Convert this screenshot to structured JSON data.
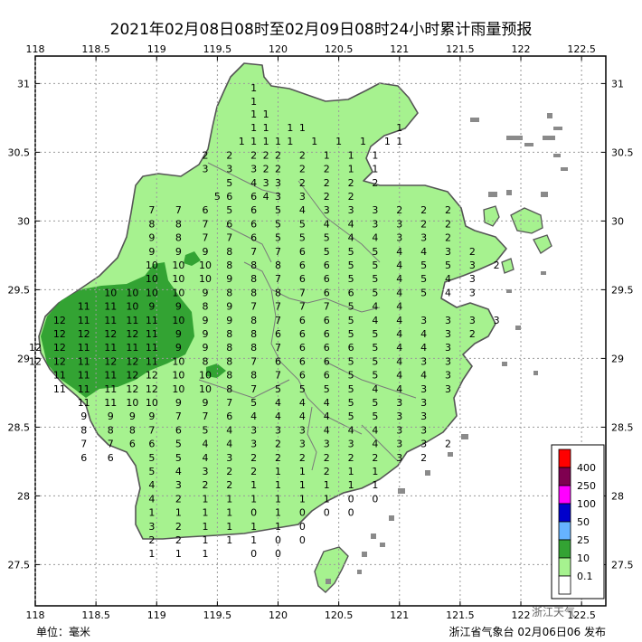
{
  "title": "2021年02月08日08时至02月09日08时24小时累计雨量预报",
  "footer": {
    "unit_label": "单位：毫米",
    "issuer": "浙江省气象台 02月06日06 发布",
    "watermark": "浙江天气"
  },
  "axes": {
    "lon_ticks": [
      "118",
      "118.5",
      "119",
      "119.5",
      "120",
      "120.5",
      "121",
      "121.5",
      "122",
      "122.5"
    ],
    "lat_ticks": [
      "31",
      "30.5",
      "30",
      "29.5",
      "29",
      "28.5",
      "28",
      "27.5"
    ],
    "lon_range": [
      118,
      122.7
    ],
    "lat_range": [
      27.2,
      31.2
    ]
  },
  "legend": {
    "title": "",
    "levels": [
      {
        "label": "400",
        "color": "#ff0000"
      },
      {
        "label": "250",
        "color": "#7f0050"
      },
      {
        "label": "100",
        "color": "#ff00ff"
      },
      {
        "label": "50",
        "color": "#0000cc"
      },
      {
        "label": "25",
        "color": "#66b3ff"
      },
      {
        "label": "10",
        "color": "#33a333"
      },
      {
        "label": "0.1",
        "color": "#a6f28f"
      },
      {
        "label": "",
        "color": "#ffffff"
      }
    ]
  },
  "chart_data": {
    "type": "heatmap",
    "title": "2021年02月08日08时至02月09日08时24小时累计雨量预报",
    "xlabel": "",
    "ylabel": "",
    "grid": true,
    "values_by_row": [
      {
        "lat": 30.97,
        "lons": [
          119.8
        ],
        "values": [
          1
        ]
      },
      {
        "lat": 30.87,
        "lons": [
          119.8
        ],
        "values": [
          1
        ]
      },
      {
        "lat": 30.78,
        "lons": [
          119.8,
          119.9
        ],
        "values": [
          1,
          1
        ]
      },
      {
        "lat": 30.68,
        "lons": [
          119.8,
          119.9,
          120.1,
          120.2,
          121.0
        ],
        "values": [
          1,
          1,
          1,
          1,
          1
        ]
      },
      {
        "lat": 30.58,
        "lons": [
          119.7,
          119.8,
          119.9,
          120.0,
          120.1,
          120.3,
          120.5,
          120.7,
          120.9,
          121.0
        ],
        "values": [
          1,
          1,
          1,
          1,
          1,
          1,
          1,
          1,
          1,
          1
        ]
      },
      {
        "lat": 30.48,
        "lons": [
          119.4,
          119.6,
          119.8,
          119.9,
          120.0,
          120.2,
          120.4,
          120.6,
          120.8
        ],
        "values": [
          2,
          2,
          2,
          2,
          2,
          2,
          1,
          1,
          1
        ]
      },
      {
        "lat": 30.38,
        "lons": [
          119.4,
          119.6,
          119.8,
          119.9,
          120.0,
          120.2,
          120.4,
          120.6,
          120.8
        ],
        "values": [
          3,
          3,
          3,
          2,
          2,
          2,
          2,
          1,
          1
        ]
      },
      {
        "lat": 30.28,
        "lons": [
          119.6,
          119.8,
          119.9,
          120.0,
          120.2,
          120.4,
          120.6,
          120.8
        ],
        "values": [
          5,
          4,
          3,
          3,
          2,
          2,
          2,
          2
        ]
      },
      {
        "lat": 30.18,
        "lons": [
          119.5,
          119.6,
          119.8,
          119.9,
          120.0,
          120.2,
          120.4,
          120.6
        ],
        "values": [
          5,
          6,
          6,
          4,
          3,
          3,
          2,
          2
        ]
      },
      {
        "lat": 30.08,
        "lons": [
          118.96,
          119.18,
          119.4,
          119.6,
          119.8,
          120.0,
          120.2,
          120.4,
          120.6,
          120.8,
          121.0,
          121.2,
          121.4
        ],
        "values": [
          7,
          7,
          6,
          5,
          6,
          5,
          4,
          3,
          3,
          3,
          2,
          2,
          2
        ]
      },
      {
        "lat": 29.98,
        "lons": [
          118.96,
          119.18,
          119.4,
          119.6,
          119.8,
          120.0,
          120.2,
          120.4,
          120.6,
          120.8,
          121.0,
          121.2,
          121.4
        ],
        "values": [
          8,
          8,
          7,
          6,
          6,
          5,
          5,
          4,
          4,
          3,
          3,
          2,
          2
        ]
      },
      {
        "lat": 29.88,
        "lons": [
          118.96,
          119.18,
          119.4,
          119.6,
          119.8,
          120.0,
          120.2,
          120.4,
          120.6,
          120.8,
          121.0,
          121.2,
          121.4
        ],
        "values": [
          9,
          8,
          7,
          7,
          6,
          5,
          5,
          5,
          4,
          4,
          3,
          3,
          2
        ]
      },
      {
        "lat": 29.78,
        "lons": [
          118.96,
          119.18,
          119.4,
          119.6,
          119.8,
          120.0,
          120.2,
          120.4,
          120.6,
          120.8,
          121.0,
          121.2,
          121.4,
          121.6
        ],
        "values": [
          9,
          9,
          9,
          8,
          7,
          7,
          6,
          5,
          5,
          5,
          4,
          4,
          3,
          2
        ]
      },
      {
        "lat": 29.68,
        "lons": [
          118.96,
          119.18,
          119.4,
          119.6,
          119.8,
          120.0,
          120.2,
          120.4,
          120.6,
          120.8,
          121.0,
          121.2,
          121.4,
          121.6,
          121.8
        ],
        "values": [
          10,
          10,
          10,
          8,
          8,
          8,
          6,
          6,
          5,
          5,
          4,
          5,
          5,
          3,
          2
        ]
      },
      {
        "lat": 29.58,
        "lons": [
          118.96,
          119.18,
          119.4,
          119.6,
          119.8,
          120.0,
          120.2,
          120.4,
          120.6,
          120.8,
          121.0,
          121.2,
          121.4,
          121.6
        ],
        "values": [
          10,
          10,
          10,
          9,
          8,
          7,
          6,
          6,
          5,
          5,
          4,
          5,
          4,
          3
        ]
      },
      {
        "lat": 29.48,
        "lons": [
          118.62,
          118.8,
          118.96,
          119.18,
          119.4,
          119.6,
          119.8,
          120.0,
          120.2,
          120.4,
          120.6,
          120.8,
          121.0,
          121.2,
          121.4,
          121.6
        ],
        "values": [
          10,
          10,
          10,
          10,
          9,
          8,
          8,
          8,
          7,
          6,
          6,
          5,
          4,
          5,
          4,
          3
        ]
      },
      {
        "lat": 29.38,
        "lons": [
          118.4,
          118.62,
          118.8,
          118.96,
          119.18,
          119.4,
          119.6,
          119.8,
          120.0,
          120.2,
          120.4,
          120.6,
          120.8,
          121.0
        ],
        "values": [
          11,
          11,
          10,
          9,
          9,
          8,
          9,
          7,
          7,
          7,
          7,
          5,
          4,
          4
        ]
      },
      {
        "lat": 29.28,
        "lons": [
          118.2,
          118.4,
          118.62,
          118.8,
          118.96,
          119.18,
          119.4,
          119.6,
          119.8,
          120.0,
          120.2,
          120.4,
          120.6,
          120.8,
          121.0,
          121.2,
          121.4,
          121.6,
          121.8
        ],
        "values": [
          12,
          11,
          11,
          11,
          11,
          10,
          9,
          9,
          8,
          7,
          6,
          6,
          5,
          4,
          4,
          3,
          3,
          3,
          3
        ]
      },
      {
        "lat": 29.18,
        "lons": [
          118.2,
          118.4,
          118.62,
          118.8,
          118.96,
          119.18,
          119.4,
          119.6,
          119.8,
          120.0,
          120.2,
          120.4,
          120.6,
          120.8,
          121.0,
          121.2,
          121.4,
          121.6
        ],
        "values": [
          12,
          12,
          12,
          12,
          11,
          9,
          9,
          8,
          8,
          6,
          6,
          6,
          5,
          5,
          4,
          4,
          3,
          2
        ]
      },
      {
        "lat": 29.08,
        "lons": [
          118.0,
          118.2,
          118.4,
          118.62,
          118.8,
          118.96,
          119.18,
          119.4,
          119.6,
          119.8,
          120.0,
          120.2,
          120.4,
          120.6,
          120.8,
          121.0,
          121.2,
          121.4
        ],
        "values": [
          12,
          12,
          11,
          11,
          11,
          11,
          9,
          9,
          8,
          8,
          7,
          6,
          6,
          6,
          5,
          4,
          4,
          3
        ]
      },
      {
        "lat": 28.98,
        "lons": [
          118.0,
          118.2,
          118.4,
          118.62,
          118.8,
          118.96,
          119.18,
          119.4,
          119.6,
          119.8,
          120.0,
          120.2,
          120.4,
          120.6,
          120.8,
          121.0,
          121.2,
          121.4
        ],
        "values": [
          12,
          12,
          11,
          12,
          12,
          11,
          10,
          8,
          8,
          7,
          6,
          6,
          6,
          5,
          5,
          4,
          3,
          3
        ]
      },
      {
        "lat": 28.88,
        "lons": [
          118.2,
          118.4,
          118.62,
          118.8,
          118.96,
          119.18,
          119.4,
          119.6,
          119.8,
          120.0,
          120.2,
          120.4,
          120.6,
          120.8,
          121.0,
          121.2,
          121.4
        ],
        "values": [
          11,
          11,
          11,
          12,
          12,
          10,
          10,
          8,
          8,
          7,
          6,
          6,
          5,
          5,
          4,
          4,
          3
        ]
      },
      {
        "lat": 28.78,
        "lons": [
          118.2,
          118.4,
          118.62,
          118.8,
          118.96,
          119.18,
          119.4,
          119.6,
          119.8,
          120.0,
          120.2,
          120.4,
          120.6,
          120.8,
          121.0,
          121.2,
          121.4
        ],
        "values": [
          11,
          11,
          11,
          12,
          12,
          10,
          10,
          8,
          7,
          5,
          5,
          5,
          5,
          4,
          4,
          3,
          3
        ]
      },
      {
        "lat": 28.68,
        "lons": [
          118.4,
          118.62,
          118.8,
          118.96,
          119.18,
          119.4,
          119.6,
          119.8,
          120.0,
          120.2,
          120.4,
          120.6,
          120.8,
          121.0,
          121.2
        ],
        "values": [
          11,
          11,
          10,
          10,
          9,
          9,
          7,
          5,
          4,
          4,
          4,
          5,
          5,
          3,
          3
        ]
      },
      {
        "lat": 28.58,
        "lons": [
          118.4,
          118.62,
          118.8,
          118.96,
          119.18,
          119.4,
          119.6,
          119.8,
          120.0,
          120.2,
          120.4,
          120.6,
          120.8,
          121.0,
          121.2
        ],
        "values": [
          9,
          9,
          9,
          9,
          7,
          7,
          6,
          4,
          4,
          4,
          4,
          5,
          5,
          3,
          3
        ]
      },
      {
        "lat": 28.48,
        "lons": [
          118.4,
          118.62,
          118.8,
          118.96,
          119.18,
          119.4,
          119.6,
          119.8,
          120.0,
          120.2,
          120.4,
          120.6,
          120.8,
          121.0,
          121.2
        ],
        "values": [
          8,
          8,
          8,
          7,
          6,
          5,
          4,
          3,
          3,
          3,
          4,
          4,
          4,
          3,
          3
        ]
      },
      {
        "lat": 28.38,
        "lons": [
          118.4,
          118.62,
          118.8,
          118.96,
          119.18,
          119.4,
          119.6,
          119.8,
          120.0,
          120.2,
          120.4,
          120.6,
          120.8,
          121.0,
          121.2,
          121.4
        ],
        "values": [
          7,
          7,
          6,
          6,
          5,
          4,
          4,
          3,
          2,
          3,
          3,
          3,
          4,
          3,
          3,
          2
        ]
      },
      {
        "lat": 28.28,
        "lons": [
          118.4,
          118.62,
          118.96,
          119.18,
          119.4,
          119.6,
          119.8,
          120.0,
          120.2,
          120.4,
          120.6,
          120.8,
          121.0,
          121.2
        ],
        "values": [
          6,
          6,
          5,
          5,
          4,
          3,
          2,
          2,
          2,
          2,
          2,
          2,
          3,
          2
        ]
      },
      {
        "lat": 28.18,
        "lons": [
          118.96,
          119.18,
          119.4,
          119.6,
          119.8,
          120.0,
          120.2,
          120.4,
          120.6,
          120.8
        ],
        "values": [
          5,
          4,
          3,
          2,
          2,
          1,
          1,
          2,
          1,
          1
        ]
      },
      {
        "lat": 28.08,
        "lons": [
          118.96,
          119.18,
          119.4,
          119.6,
          119.8,
          120.0,
          120.2,
          120.4,
          120.6,
          120.8
        ],
        "values": [
          4,
          3,
          2,
          2,
          1,
          1,
          1,
          1,
          1,
          1
        ]
      },
      {
        "lat": 27.98,
        "lons": [
          118.96,
          119.18,
          119.4,
          119.6,
          119.8,
          120.0,
          120.2,
          120.4,
          120.6,
          120.8
        ],
        "values": [
          4,
          2,
          1,
          1,
          1,
          1,
          1,
          1,
          0,
          0
        ]
      },
      {
        "lat": 27.88,
        "lons": [
          118.96,
          119.18,
          119.4,
          119.6,
          119.8,
          120.0,
          120.2,
          120.4,
          120.6
        ],
        "values": [
          1,
          1,
          1,
          1,
          0,
          1,
          0,
          0,
          0
        ]
      },
      {
        "lat": 27.78,
        "lons": [
          118.96,
          119.18,
          119.4,
          119.6,
          119.8,
          120.0,
          120.2
        ],
        "values": [
          3,
          2,
          1,
          1,
          1,
          1,
          0
        ]
      },
      {
        "lat": 27.68,
        "lons": [
          118.96,
          119.18,
          119.4,
          119.6,
          119.8,
          120.0,
          120.2
        ],
        "values": [
          2,
          2,
          1,
          1,
          1,
          0,
          0
        ]
      },
      {
        "lat": 27.58,
        "lons": [
          118.96,
          119.18,
          119.4,
          119.8,
          120.0
        ],
        "values": [
          1,
          1,
          1,
          0,
          0
        ]
      }
    ]
  }
}
